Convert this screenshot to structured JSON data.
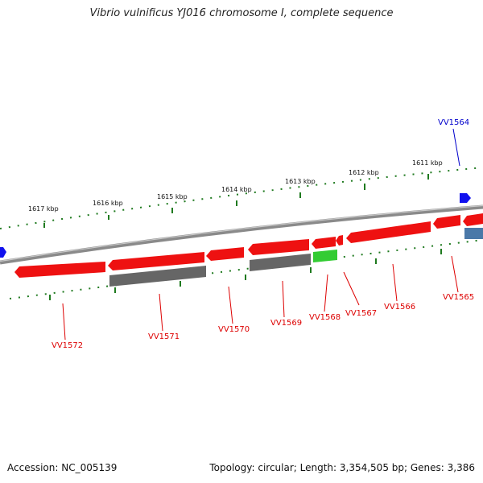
{
  "title": "Vibrio vulnificus YJ016 chromosome I, complete sequence",
  "footer": {
    "accession": "Accession: NC_005139",
    "summary": "Topology: circular; Length: 3,354,505 bp; Genes: 3,386"
  },
  "colors": {
    "backbone": "#8a8a8a",
    "tick": "#1f7a1f",
    "gene_red": "#ee1111",
    "gene_gray": "#666666",
    "gene_green": "#33cc33",
    "gene_blue": "#1111ee",
    "gene_steelblue": "#4a78a8",
    "label_red": "#dd0000",
    "label_blue": "#0000cc"
  },
  "scale_labels": [
    "1617 kbp",
    "1616 kbp",
    "1615 kbp",
    "1614 kbp",
    "1613 kbp",
    "1612 kbp",
    "1611 kbp"
  ],
  "gene_labels": [
    "VV1564",
    "VV1565",
    "VV1566",
    "VV1567",
    "VV1568",
    "VV1569",
    "VV1570",
    "VV1571",
    "VV1572"
  ]
}
